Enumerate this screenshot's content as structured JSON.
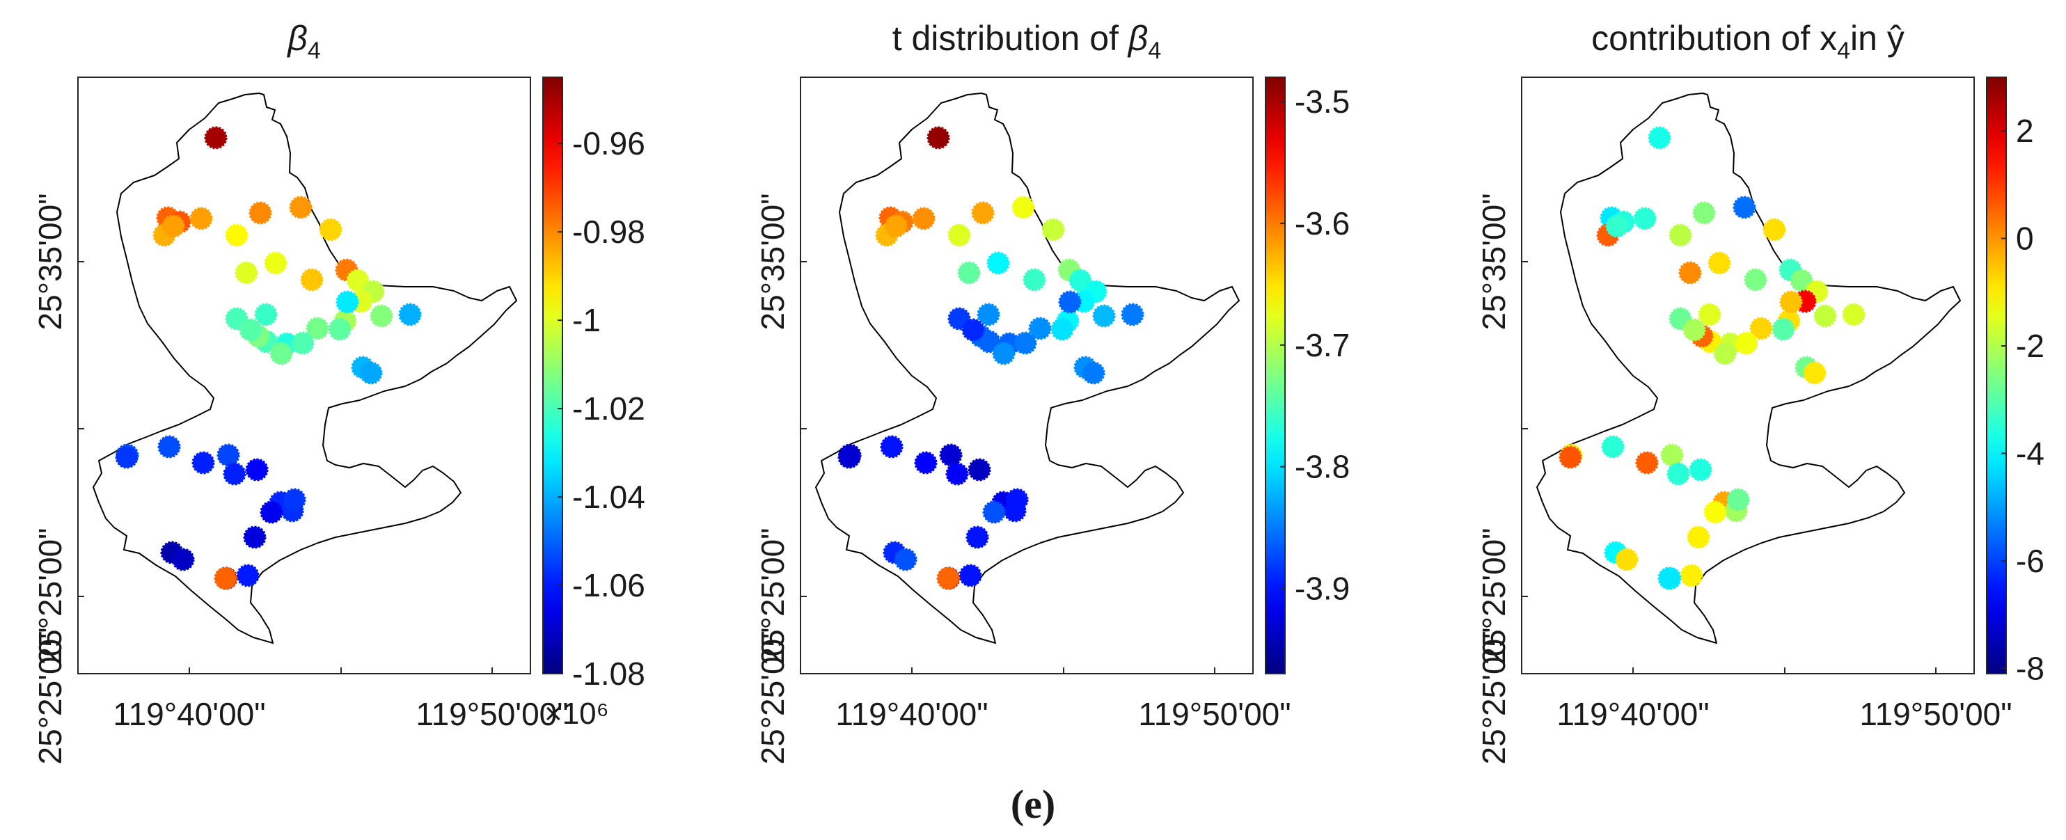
{
  "figure_label": "(e)",
  "colorbar_exponent": "×10⁶",
  "panels": [
    {
      "title_parts": [
        {
          "t": "β",
          "style": "italic"
        },
        {
          "t": "4",
          "style": "sub"
        }
      ],
      "xlabels": [
        "119°40'00\"",
        "119°50'00\""
      ],
      "ylabels": [
        "25°35'00\"",
        "25°25'00\""
      ],
      "colorbar": {
        "min": -1.08,
        "max": -0.945,
        "ticks": [
          -0.96,
          -0.98,
          -1,
          -1.02,
          -1.04,
          -1.06,
          -1.08
        ],
        "ticklabels": [
          "-0.96",
          "-0.98",
          "-1",
          "-1.02",
          "-1.04",
          "-1.06",
          "-1.08"
        ],
        "show_exponent": true
      },
      "point_values": [
        -0.95,
        -0.975,
        -0.973,
        -0.983,
        -0.985,
        -0.983,
        -0.98,
        -0.982,
        -0.99,
        -0.995,
        -0.978,
        -0.998,
        -1.0,
        -0.988,
        -1.0,
        -1.004,
        -1.012,
        -1.0,
        -1.007,
        -1.017,
        -1.014,
        -1.025,
        -1.019,
        -1.02,
        -1.022,
        -1.013,
        -1.015,
        -1.02,
        -1.018,
        -1.032,
        -1.04,
        -1.039,
        -1.041,
        -1.053,
        -1.052,
        -1.056,
        -1.059,
        -1.054,
        -1.059,
        -1.063,
        -1.058,
        -1.057,
        -1.056,
        -1.065,
        -1.068,
        -1.074,
        -1.071,
        -1.06
      ]
    },
    {
      "title_parts": [
        {
          "t": "t distribution of ",
          "style": "normal"
        },
        {
          "t": "β",
          "style": "italic"
        },
        {
          "t": "4",
          "style": "sub"
        }
      ],
      "xlabels": [
        "119°40'00\"",
        "119°50'00\""
      ],
      "ylabels": [
        "25°35'00\"",
        "25°25'00\""
      ],
      "colorbar": {
        "min": -3.97,
        "max": -3.48,
        "ticks": [
          -3.5,
          -3.6,
          -3.7,
          -3.8,
          -3.9
        ],
        "ticklabels": [
          "-3.5",
          "-3.6",
          "-3.7",
          "-3.8",
          "-3.9"
        ],
        "show_exponent": false
      },
      "point_values": [
        -3.49,
        -3.59,
        -3.6,
        -3.61,
        -3.63,
        -3.62,
        -3.62,
        -3.67,
        -3.69,
        -3.68,
        -3.72,
        -3.79,
        -3.74,
        -3.76,
        -3.77,
        -3.78,
        -3.82,
        -3.79,
        -3.79,
        -3.8,
        -3.84,
        -3.86,
        -3.85,
        -3.86,
        -3.84,
        -3.86,
        -3.84,
        -3.88,
        -3.89,
        -3.86,
        -3.85,
        -3.84,
        -3.85,
        -3.9,
        -3.94,
        -3.93,
        -3.91,
        -3.93,
        -3.91,
        -3.94,
        -3.92,
        -3.9,
        -3.9,
        -3.87,
        -3.9,
        -3.89,
        -3.87,
        -3.9
      ]
    },
    {
      "title_parts": [
        {
          "t": "contribution of x",
          "style": "normal"
        },
        {
          "t": "4",
          "style": "sub"
        },
        {
          "t": "in ŷ",
          "style": "normal"
        }
      ],
      "xlabels": [
        "119°40'00\"",
        "119°50'00\""
      ],
      "ylabels": [
        "25°35'00\"",
        "25°25'00\""
      ],
      "colorbar": {
        "min": -8.1,
        "max": 3.0,
        "ticks": [
          2,
          0,
          -2,
          -4,
          -6,
          -8
        ],
        "ticklabels": [
          "2",
          "0",
          "-2",
          "-4",
          "-6",
          "-8"
        ],
        "show_exponent": false
      },
      "point_values": [
        -3.7,
        -4.2,
        -3.6,
        -3.5,
        0.6,
        -3.4,
        -2.5,
        -5.5,
        -0.8,
        -1.9,
        -3.3,
        -0.8,
        0.1,
        -2.6,
        -2.5,
        -1.5,
        -1.8,
        1.7,
        -0.8,
        -3.0,
        -0.7,
        -1.7,
        -1.3,
        -1.0,
        -1.5,
        0.5,
        -1.9,
        -2.8,
        -2.1,
        -0.5,
        -1.6,
        -2.7,
        -0.9,
        -3.5,
        -1.0,
        0.7,
        0.6,
        -2.1,
        -3.5,
        -3.6,
        -0.2,
        -2.2,
        -2.8,
        -1.2,
        -1.0,
        -4.0,
        -0.8,
        -1.0
      ]
    }
  ]
}
